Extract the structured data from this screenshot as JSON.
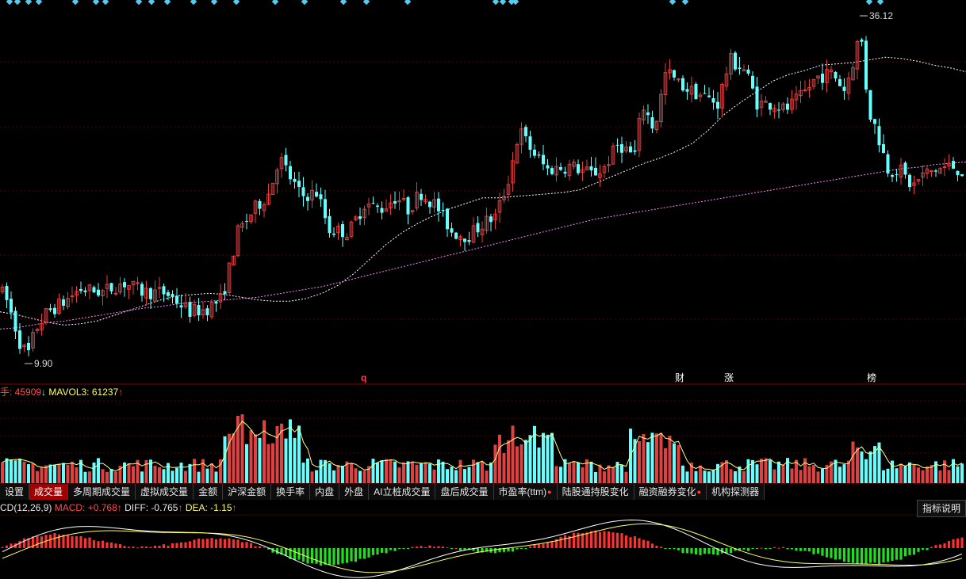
{
  "price_high_label": "36.12",
  "price_low_label": "9.90",
  "event_markers": [
    "q",
    "财",
    "涨",
    "榜"
  ],
  "volume_legend": {
    "prefix": "手: 45909",
    "prefix_arrow": "↓",
    "mavol3": "MAVOL3: 61237",
    "mavol3_arrow": "↑"
  },
  "tabs": [
    {
      "label": "设置",
      "active": false,
      "dot": false
    },
    {
      "label": "成交量",
      "active": true,
      "dot": false
    },
    {
      "label": "多周期成交量",
      "active": false,
      "dot": false
    },
    {
      "label": "虚拟成交量",
      "active": false,
      "dot": false
    },
    {
      "label": "金额",
      "active": false,
      "dot": false
    },
    {
      "label": "沪深金额",
      "active": false,
      "dot": false
    },
    {
      "label": "换手率",
      "active": false,
      "dot": false
    },
    {
      "label": "内盘",
      "active": false,
      "dot": false
    },
    {
      "label": "外盘",
      "active": false,
      "dot": false
    },
    {
      "label": "AI立桩成交量",
      "active": false,
      "dot": false
    },
    {
      "label": "盘后成交量",
      "active": false,
      "dot": false
    },
    {
      "label": "市盈率(ttm)",
      "active": false,
      "dot": true
    },
    {
      "label": "陆股通持股变化",
      "active": false,
      "dot": false
    },
    {
      "label": "融资融券变化",
      "active": false,
      "dot": true
    },
    {
      "label": "机构探测器",
      "active": false,
      "dot": false
    }
  ],
  "macd_legend": {
    "name": "CD(12,26,9)",
    "macd": "MACD: +0.768",
    "macd_arrow": "↑",
    "diff": "DIFF: -0.765",
    "diff_arrow": "↑",
    "dea": "DEA: -1.15",
    "dea_arrow": "↑"
  },
  "help_button": "指标说明",
  "colors": {
    "up": "#e04040",
    "down": "#66ffff",
    "grid": "#5a0000",
    "ma_short": "#ffffff",
    "ma_long": "#ff88ff",
    "macd_pos": "#ff3030",
    "macd_neg": "#22dd22"
  },
  "chart_data": {
    "type": "candlestick",
    "price_min": 9.9,
    "price_max": 36.12,
    "ma_short": [
      13.8,
      13.6,
      13.3,
      13.0,
      12.8,
      12.9,
      13.1,
      13.5,
      13.9,
      14.3,
      14.7,
      15.0,
      15.1,
      15.2,
      15.1,
      14.9,
      14.7,
      14.6,
      14.6,
      14.8,
      15.2,
      15.8,
      16.7,
      17.8,
      18.9,
      19.8,
      20.5,
      21.1,
      21.6,
      22.0,
      22.4,
      22.4,
      22.5,
      22.6,
      22.7,
      22.8,
      23.0,
      23.5,
      24.0,
      24.5,
      25.0,
      25.4,
      25.9,
      26.5,
      27.5,
      28.7,
      29.6,
      30.4,
      31.2,
      31.7,
      32.0,
      32.4,
      32.5,
      32.6,
      32.8,
      33.0,
      32.9,
      32.7,
      32.4,
      32.2,
      31.9
    ],
    "ma_long": [
      12.5,
      12.6,
      12.8,
      13.0,
      13.1,
      13.3,
      13.5,
      13.7,
      13.9,
      14.1,
      14.2,
      14.4,
      14.5,
      14.6,
      14.7,
      14.8,
      14.9,
      15.1,
      15.3,
      15.5,
      15.7,
      16.0,
      16.3,
      16.6,
      16.9,
      17.2,
      17.5,
      17.8,
      18.1,
      18.4,
      18.7,
      19.0,
      19.3,
      19.6,
      19.9,
      20.2,
      20.5,
      20.8,
      21.0,
      21.2,
      21.4,
      21.6,
      21.8,
      22.0,
      22.2,
      22.4,
      22.6,
      22.8,
      23.0,
      23.2,
      23.4,
      23.6,
      23.8,
      24.0,
      24.2,
      24.4,
      24.6,
      24.7,
      24.9,
      25.0,
      25.1
    ]
  }
}
